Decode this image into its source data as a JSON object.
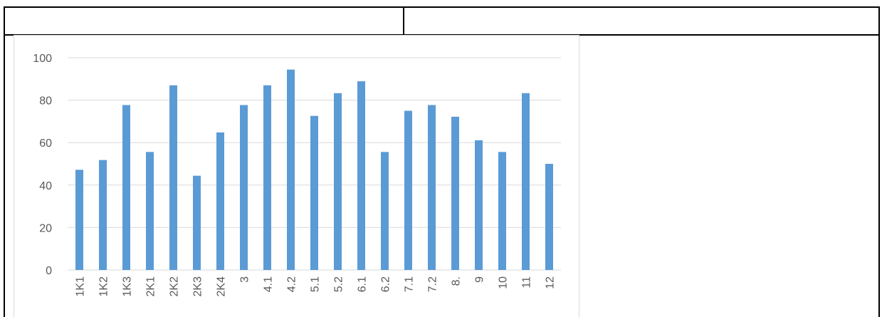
{
  "table": {
    "header_cells": [
      "",
      ""
    ]
  },
  "chart_data": {
    "type": "bar",
    "categories": [
      "1K1",
      "1K2",
      "1K3",
      "2K1",
      "2K2",
      "2K3",
      "2K4",
      "3",
      "4.1",
      "4.2",
      "5.1",
      "5.2",
      "6.1",
      "6.2",
      "7.1",
      "7.2",
      "8.",
      "9",
      "10",
      "11",
      "12"
    ],
    "values": [
      47.2,
      51.8,
      77.7,
      55.6,
      87,
      44.4,
      64.8,
      77.7,
      87,
      94.4,
      72.6,
      83.3,
      88.9,
      55.6,
      75,
      77.7,
      72.2,
      61.1,
      55.6,
      83.3,
      50
    ],
    "title": "",
    "xlabel": "",
    "ylabel": "",
    "ylim": [
      0,
      100
    ],
    "yticks": [
      "0",
      "20",
      "40",
      "60",
      "80",
      "100"
    ],
    "grid": true,
    "legend": "none",
    "bar_color": "#5b9bd5",
    "grid_color": "#d9d9d9",
    "tick_label_color": "#595959"
  }
}
